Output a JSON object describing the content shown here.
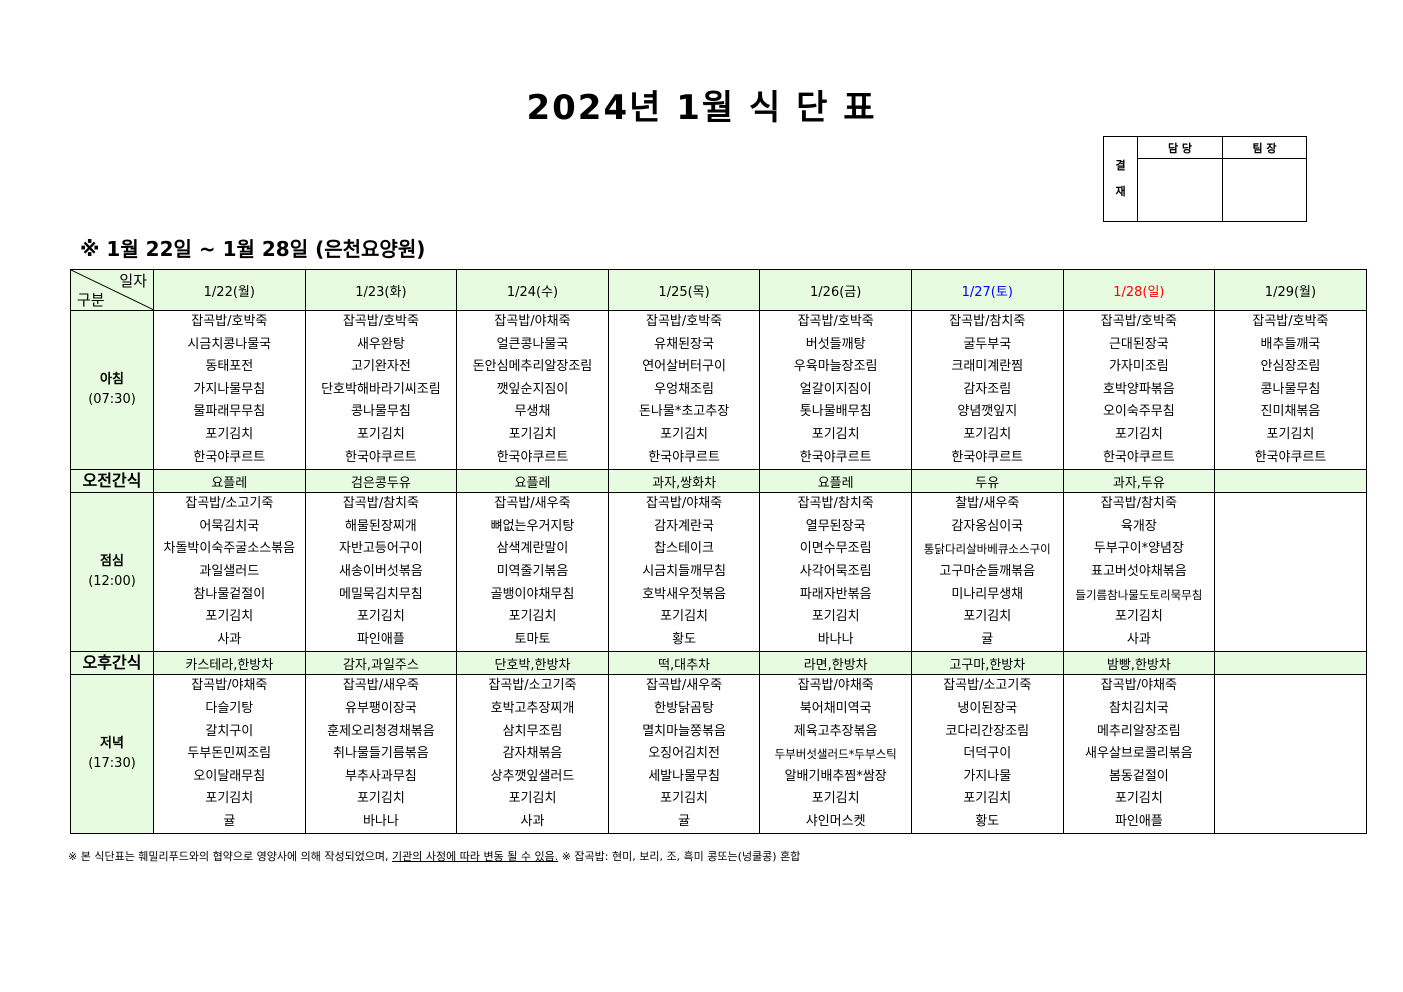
{
  "title": "2024년 1월 식 단 표",
  "subtitle": "※ 1월 22일 ~ 1월 28일 (은천요양원)",
  "approval": {
    "side_label": "결\n재",
    "side_top": "결",
    "side_bottom": "재",
    "col1": "담 당",
    "col2": "팀 장"
  },
  "table": {
    "corner_top": "일자",
    "corner_bottom": "구분",
    "days": [
      {
        "label": "1/22(월)",
        "color": "#000000"
      },
      {
        "label": "1/23(화)",
        "color": "#000000"
      },
      {
        "label": "1/24(수)",
        "color": "#000000"
      },
      {
        "label": "1/25(목)",
        "color": "#000000"
      },
      {
        "label": "1/26(금)",
        "color": "#000000"
      },
      {
        "label": "1/27(토)",
        "color": "#0000ff"
      },
      {
        "label": "1/28(일)",
        "color": "#ff0000"
      },
      {
        "label": "1/29(월)",
        "color": "#000000"
      }
    ],
    "rows": [
      {
        "type": "meal",
        "label1": "아침",
        "label2": "(07:30)",
        "cols": [
          [
            "잡곡밥/호박죽",
            "시금치콩나물국",
            "동태포전",
            "가지나물무침",
            "물파래무무침",
            "포기김치",
            "한국야쿠르트"
          ],
          [
            "잡곡밥/호박죽",
            "새우완탕",
            "고기완자전",
            "단호박해바라기씨조림",
            "콩나물무침",
            "포기김치",
            "한국야쿠르트"
          ],
          [
            "잡곡밥/야채죽",
            "얼큰콩나물국",
            "돈안심메추리알장조림",
            "깻잎순지짐이",
            "무생채",
            "포기김치",
            "한국야쿠르트"
          ],
          [
            "잡곡밥/호박죽",
            "유채된장국",
            "연어살버터구이",
            "우엉채조림",
            "돈나물*초고추장",
            "포기김치",
            "한국야쿠르트"
          ],
          [
            "잡곡밥/호박죽",
            "버섯들깨탕",
            "우육마늘장조림",
            "얼갈이지짐이",
            "톳나물배무침",
            "포기김치",
            "한국야쿠르트"
          ],
          [
            "잡곡밥/참치죽",
            "굴두부국",
            "크래미계란찜",
            "감자조림",
            "양념깻잎지",
            "포기김치",
            "한국야쿠르트"
          ],
          [
            "잡곡밥/호박죽",
            "근대된장국",
            "가자미조림",
            "호박양파볶음",
            "오이숙주무침",
            "포기김치",
            "한국야쿠르트"
          ],
          [
            "잡곡밥/호박죽",
            "배추들깨국",
            "안심장조림",
            "콩나물무침",
            "진미채볶음",
            "포기김치",
            "한국야쿠르트"
          ]
        ]
      },
      {
        "type": "snack",
        "label1": "오전간식",
        "cols": [
          "요플레",
          "검은콩두유",
          "요플레",
          "과자,쌍화차",
          "요플레",
          "두유",
          "과자,두유",
          ""
        ]
      },
      {
        "type": "meal",
        "label1": "점심",
        "label2": "(12:00)",
        "cols": [
          [
            "잡곡밥/소고기죽",
            "어묵김치국",
            "차돌박이숙주굴소스볶음",
            "과일샐러드",
            "참나물겉절이",
            "포기김치",
            "사과"
          ],
          [
            "잡곡밥/참치죽",
            "해물된장찌개",
            "자반고등어구이",
            "새송이버섯볶음",
            "메밀묵김치무침",
            "포기김치",
            "파인애플"
          ],
          [
            "잡곡밥/새우죽",
            "뼈없는우거지탕",
            "삼색계란말이",
            "미역줄기볶음",
            "골뱅이야채무침",
            "포기김치",
            "토마토"
          ],
          [
            "잡곡밥/야채죽",
            "감자계란국",
            "찹스테이크",
            "시금치들깨무침",
            "호박새우젓볶음",
            "포기김치",
            "황도"
          ],
          [
            "잡곡밥/참치죽",
            "열무된장국",
            "이면수무조림",
            "사각어묵조림",
            "파래자반볶음",
            "포기김치",
            "바나나"
          ],
          [
            "찰밥/새우죽",
            "감자옹심이국",
            "통닭다리살바베큐소스구이",
            "고구마순들깨볶음",
            "미나리무생채",
            "포기김치",
            "귤"
          ],
          [
            "잡곡밥/참치죽",
            "육개장",
            "두부구이*양념장",
            "표고버섯야채볶음",
            "들기름참나물도토리묵무침",
            "포기김치",
            "사과"
          ],
          []
        ]
      },
      {
        "type": "snack",
        "label1": "오후간식",
        "cols": [
          "카스테라,한방차",
          "감자,과일주스",
          "단호박,한방차",
          "떡,대추차",
          "라면,한방차",
          "고구마,한방차",
          "밤빵,한방차",
          ""
        ]
      },
      {
        "type": "meal",
        "label1": "저녁",
        "label2": "(17:30)",
        "cols": [
          [
            "잡곡밥/야채죽",
            "다슬기탕",
            "갈치구이",
            "두부돈민찌조림",
            "오이달래무침",
            "포기김치",
            "귤"
          ],
          [
            "잡곡밥/새우죽",
            "유부팽이장국",
            "훈제오리청경채볶음",
            "취나물들기름볶음",
            "부추사과무침",
            "포기김치",
            "바나나"
          ],
          [
            "잡곡밥/소고기죽",
            "호박고추장찌개",
            "삼치무조림",
            "감자채볶음",
            "상추깻잎샐러드",
            "포기김치",
            "사과"
          ],
          [
            "잡곡밥/새우죽",
            "한방닭곰탕",
            "멸치마늘쫑볶음",
            "오징어김치전",
            "세발나물무침",
            "포기김치",
            "귤"
          ],
          [
            "잡곡밥/야채죽",
            "북어채미역국",
            "제육고추장볶음",
            "두부버섯샐러드*두부스틱",
            "알배기배추찜*쌈장",
            "포기김치",
            "샤인머스켓"
          ],
          [
            "잡곡밥/소고기죽",
            "냉이된장국",
            "코다리간장조림",
            "더덕구이",
            "가지나물",
            "포기김치",
            "황도"
          ],
          [
            "잡곡밥/야채죽",
            "참치김치국",
            "메추리알장조림",
            "새우살브로콜리볶음",
            "봄동겉절이",
            "포기김치",
            "파인애플"
          ],
          []
        ]
      }
    ]
  },
  "footnote": {
    "part1": "※ 본 식단표는 훼밀리푸드와의 협약으로 영양사에 의해 작성되었으며, ",
    "part2": "기관의 사정에 따라 변동 될 수 있음.",
    "part3": " ※ 잡곡밥: 현미, 보리, 조, 흑미 콩또는(넝쿨콩) 혼합"
  }
}
